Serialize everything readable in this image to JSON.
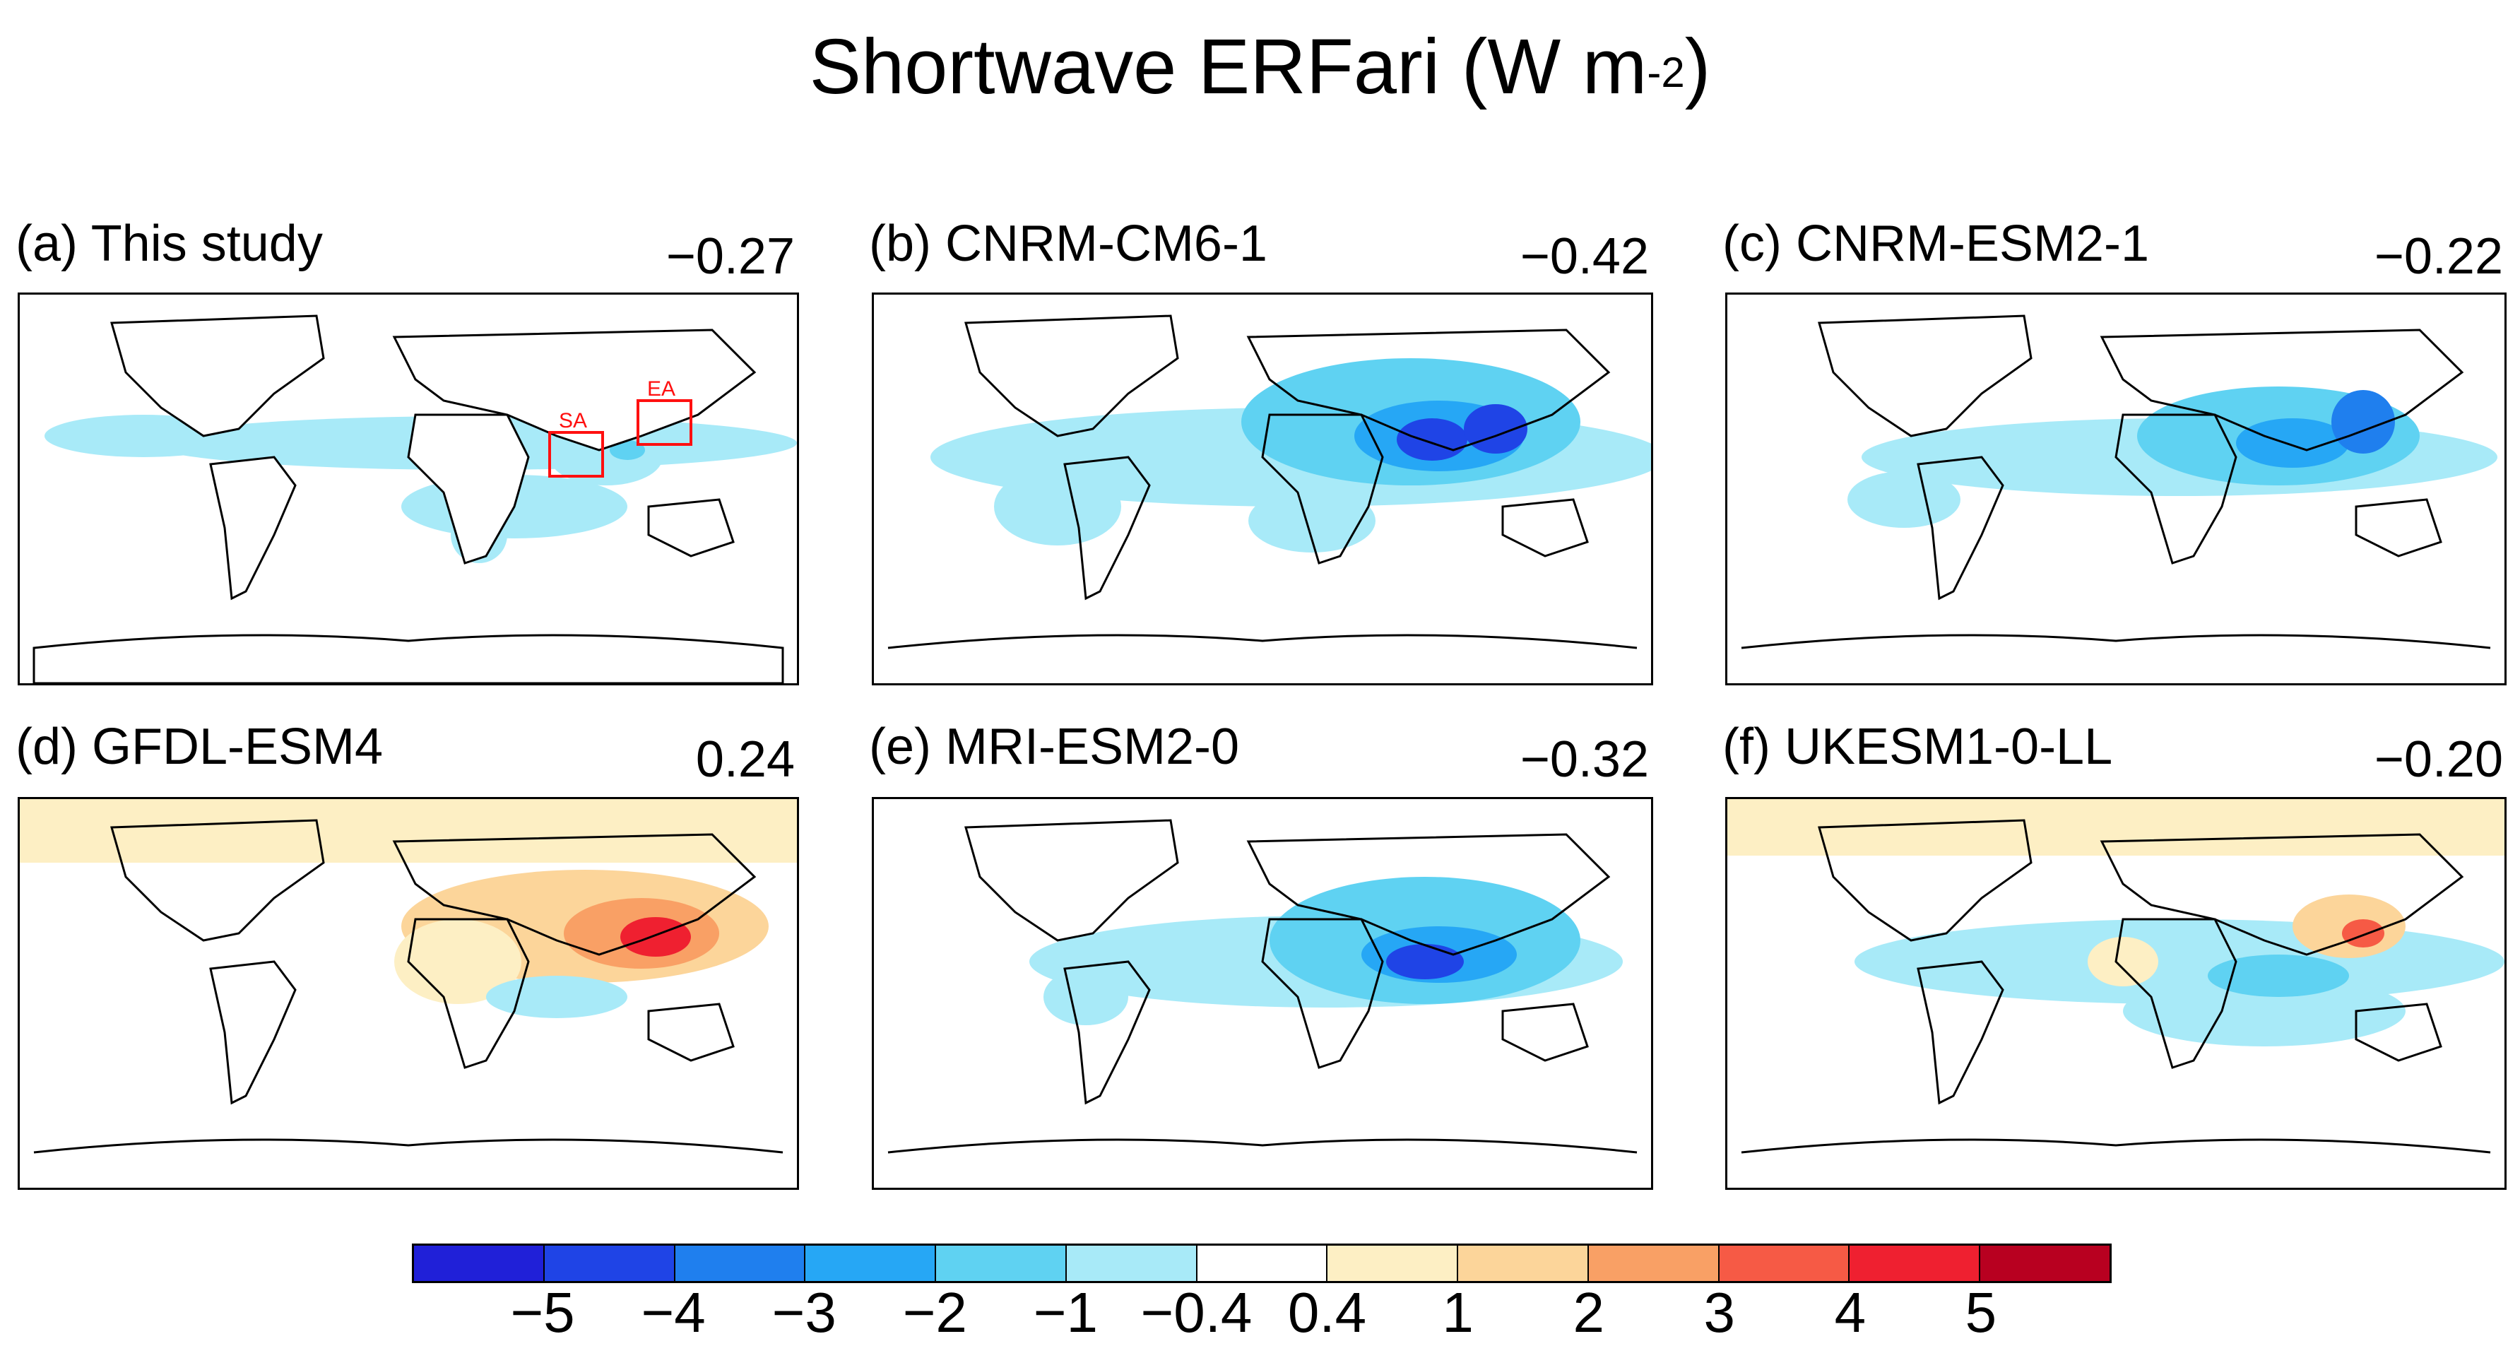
{
  "figure": {
    "title_main": "Shortwave ERFari (W m",
    "title_exp": "-2",
    "title_close": ")"
  },
  "panels": [
    {
      "label": "(a) This study",
      "value": "−0.27"
    },
    {
      "label": "(b) CNRM-CM6-1",
      "value": "−0.42"
    },
    {
      "label": "(c) CNRM-ESM2-1",
      "value": "−0.22"
    },
    {
      "label": "(d) GFDL-ESM4",
      "value": "0.24"
    },
    {
      "label": "(e) MRI-ESM2-0",
      "value": "−0.32"
    },
    {
      "label": "(f) UKESM1-0-LL",
      "value": "−0.20"
    }
  ],
  "regions": {
    "sa": "SA",
    "ea": "EA"
  },
  "colorbar": {
    "colors": [
      "#2020d8",
      "#1f44e6",
      "#1f7fee",
      "#26a7f5",
      "#5fd2f2",
      "#a8eaf8",
      "#ffffff",
      "#fdefc4",
      "#fcd59a",
      "#f9a065",
      "#f65a45",
      "#ef2030",
      "#b80020"
    ],
    "ticks": [
      "−5",
      "−4",
      "−3",
      "−2",
      "−1",
      "−0.4",
      "0.4",
      "1",
      "2",
      "3",
      "4",
      "5"
    ]
  },
  "chart_data": {
    "type": "heatmap",
    "title": "Shortwave ERFari (W m-2)",
    "colorbar_levels": [
      -5,
      -4,
      -3,
      -2,
      -1,
      -0.4,
      0.4,
      1,
      2,
      3,
      4,
      5
    ],
    "panels": [
      {
        "name": "This study",
        "global_mean": -0.27
      },
      {
        "name": "CNRM-CM6-1",
        "global_mean": -0.42
      },
      {
        "name": "CNRM-ESM2-1",
        "global_mean": -0.22
      },
      {
        "name": "GFDL-ESM4",
        "global_mean": 0.24
      },
      {
        "name": "MRI-ESM2-0",
        "global_mean": -0.32
      },
      {
        "name": "UKESM1-0-LL",
        "global_mean": -0.2
      }
    ]
  }
}
